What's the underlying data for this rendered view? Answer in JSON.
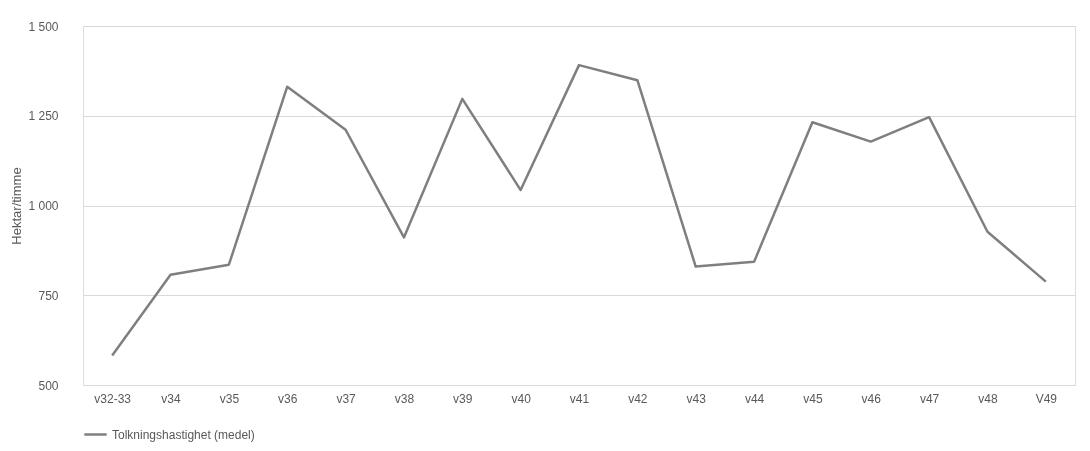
{
  "chart_data": {
    "type": "line",
    "ylabel": "Hektar/timme",
    "categories": [
      "v32-33",
      "v34",
      "v35",
      "v36",
      "v37",
      "v38",
      "v39",
      "v40",
      "v41",
      "v42",
      "v43",
      "v44",
      "v45",
      "v46",
      "v47",
      "v48",
      "V49"
    ],
    "series": [
      {
        "name": "Tolkningshastighet (medel)",
        "color": "#7f7f7f",
        "values": [
          582,
          807,
          835,
          1331,
          1211,
          911,
          1297,
          1043,
          1391,
          1349,
          830,
          843,
          1232,
          1178,
          1246,
          927,
          788
        ]
      }
    ],
    "ylim": [
      500,
      1500
    ],
    "yticks": [
      {
        "value": 500,
        "label": "500"
      },
      {
        "value": 750,
        "label": "750"
      },
      {
        "value": 1000,
        "label": "1 000"
      },
      {
        "value": 1250,
        "label": "1 250"
      },
      {
        "value": 1500,
        "label": "1 500"
      }
    ],
    "grid": "y",
    "legend": "bottom",
    "marker": "none",
    "line_style": "solid"
  }
}
